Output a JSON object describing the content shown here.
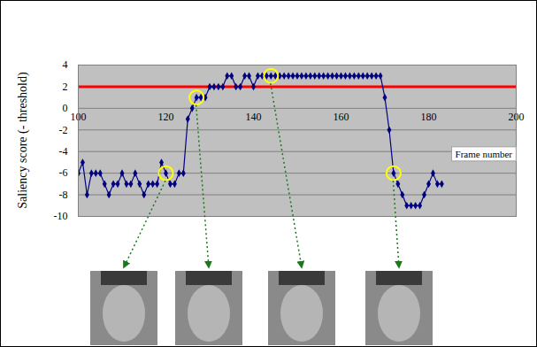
{
  "chart_data": {
    "type": "line",
    "x_label": "Frame number",
    "y_label": "Saliency score (- threshold)",
    "x": [
      100,
      101,
      102,
      103,
      104,
      105,
      106,
      107,
      108,
      109,
      110,
      111,
      112,
      113,
      114,
      115,
      116,
      117,
      118,
      119,
      120,
      121,
      122,
      123,
      124,
      125,
      126,
      127,
      128,
      129,
      130,
      131,
      132,
      133,
      134,
      135,
      136,
      137,
      138,
      139,
      140,
      141,
      142,
      143,
      144,
      145,
      146,
      147,
      148,
      149,
      150,
      151,
      152,
      153,
      154,
      155,
      156,
      157,
      158,
      159,
      160,
      161,
      162,
      163,
      164,
      165,
      166,
      167,
      168,
      169,
      170,
      171,
      172,
      173,
      174,
      175,
      176,
      177,
      178,
      179,
      180,
      181,
      182,
      183
    ],
    "values": [
      -6,
      -5,
      -8,
      -6,
      -6,
      -6,
      -7,
      -8,
      -7,
      -7,
      -6,
      -7,
      -7,
      -6,
      -7,
      -8,
      -7,
      -7,
      -7,
      -5,
      -6,
      -7,
      -7,
      -6,
      -6,
      -1,
      0,
      1,
      1,
      1,
      2,
      2,
      2,
      2,
      3,
      3,
      2,
      2,
      3,
      3,
      2,
      3,
      3,
      3,
      3,
      3,
      3,
      3,
      3,
      3,
      3,
      3,
      3,
      3,
      3,
      3,
      3,
      3,
      3,
      3,
      3,
      3,
      3,
      3,
      3,
      3,
      3,
      3,
      3,
      3,
      1,
      -2,
      -6,
      -7,
      -8,
      -9,
      -9,
      -9,
      -9,
      -8,
      -7,
      -6,
      -7,
      -7
    ],
    "color": "#000080",
    "marker": "diamond",
    "xlim": [
      100,
      200
    ],
    "ylim": [
      -10,
      4
    ],
    "xticks": [
      100,
      120,
      140,
      160,
      180,
      200
    ],
    "yticks": [
      -10,
      -8,
      -6,
      -4,
      -2,
      0,
      2,
      4
    ],
    "grid": true,
    "threshold": {
      "value": 2,
      "color": "#ff0000"
    },
    "highlights": {
      "x": [
        120,
        127,
        144,
        172
      ],
      "color": "#ffff00"
    }
  }
}
